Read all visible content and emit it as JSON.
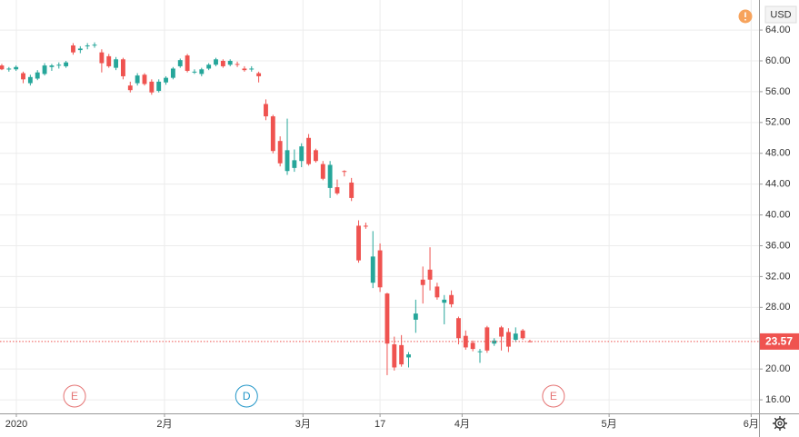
{
  "chart_data": {
    "type": "candlestick",
    "currency": "USD",
    "last_price": 23.57,
    "last_price_label": "23.57",
    "up_color": "#26a69a",
    "down_color": "#ef5350",
    "grid": true,
    "ylim": [
      14.24,
      67.9
    ],
    "yticks": [
      {
        "value": 16,
        "label": "16.00"
      },
      {
        "value": 20,
        "label": "20.00"
      },
      {
        "value": 24,
        "label": "24.00"
      },
      {
        "value": 28,
        "label": "28.00"
      },
      {
        "value": 32,
        "label": "32.00"
      },
      {
        "value": 36,
        "label": "36.00"
      },
      {
        "value": 40,
        "label": "40.00"
      },
      {
        "value": 44,
        "label": "44.00"
      },
      {
        "value": 48,
        "label": "48.00"
      },
      {
        "value": 52,
        "label": "52.00"
      },
      {
        "value": 56,
        "label": "56.00"
      },
      {
        "value": 60,
        "label": "60.00"
      },
      {
        "value": 64,
        "label": "64.00"
      }
    ],
    "xlim": [
      -0.25,
      106.1
    ],
    "xticks": [
      {
        "value": 2.04,
        "label": "2020"
      },
      {
        "value": 22.8,
        "label": "2月"
      },
      {
        "value": 42.2,
        "label": "3月"
      },
      {
        "value": 53,
        "label": "17"
      },
      {
        "value": 64.5,
        "label": "4月"
      },
      {
        "value": 85.1,
        "label": "5月"
      },
      {
        "value": 105,
        "label": "6月"
      }
    ],
    "events": [
      {
        "label": "E",
        "x": 10.2,
        "color": "#e57373"
      },
      {
        "label": "D",
        "x": 34.3,
        "color": "#2196c8"
      },
      {
        "label": "E",
        "x": 77.3,
        "color": "#e57373"
      }
    ],
    "open": [
      59.4,
      58.9,
      58.9,
      58.4,
      57.1,
      57.7,
      58.3,
      59.2,
      59.4,
      59.3,
      62.0,
      61.4,
      61.9,
      62.0,
      61.1,
      60.6,
      59.1,
      60.2,
      56.8,
      57.1,
      58.2,
      57.3,
      56.1,
      57.2,
      57.8,
      59.3,
      60.7,
      58.6,
      58.3,
      59.0,
      59.5,
      60.0,
      59.5,
      59.6,
      59.0,
      59.0,
      58.4,
      54.4,
      52.8,
      49.6,
      45.7,
      46.1,
      47.0,
      50.0,
      48.4,
      46.6,
      43.5,
      43.6,
      45.7,
      44.2,
      38.6,
      38.6,
      31.2,
      35.4,
      29.8,
      23.2,
      23.1,
      21.5,
      26.4,
      31.6,
      32.9,
      30.7,
      28.6,
      29.6,
      26.6,
      24.3,
      23.4,
      22.3,
      25.4,
      23.3,
      25.4,
      24.8,
      23.8,
      25.0,
      23.6
    ],
    "high": [
      59.6,
      59.2,
      59.4,
      58.6,
      58.2,
      58.8,
      59.7,
      59.6,
      59.8,
      60.0,
      62.3,
      61.9,
      62.3,
      62.4,
      61.5,
      60.9,
      60.5,
      60.4,
      57.3,
      58.4,
      58.4,
      57.6,
      57.6,
      58.0,
      59.2,
      60.3,
      60.9,
      58.9,
      59.1,
      59.7,
      60.4,
      60.2,
      60.2,
      59.9,
      59.3,
      59.3,
      58.6,
      55.0,
      53.0,
      50.2,
      52.5,
      48.5,
      49.3,
      50.5,
      48.6,
      47.0,
      47.0,
      44.6,
      45.8,
      44.8,
      39.3,
      39.0,
      37.9,
      36.3,
      29.9,
      24.2,
      24.4,
      22.2,
      29.0,
      33.3,
      35.8,
      31.2,
      29.6,
      30.2,
      26.8,
      25.0,
      23.7,
      22.6,
      25.6,
      24.0,
      25.6,
      25.3,
      25.4,
      25.2,
      23.8
    ],
    "low": [
      58.8,
      58.6,
      58.7,
      57.1,
      56.8,
      57.5,
      58.1,
      58.7,
      59.0,
      59.1,
      60.8,
      61.0,
      61.5,
      61.7,
      58.5,
      59.1,
      58.8,
      57.6,
      55.9,
      56.8,
      56.8,
      55.6,
      55.9,
      56.9,
      57.6,
      59.1,
      58.5,
      58.3,
      58.0,
      58.8,
      59.3,
      59.1,
      59.3,
      59.2,
      58.6,
      58.6,
      57.2,
      52.3,
      48.0,
      46.3,
      45.2,
      45.6,
      46.2,
      46.4,
      46.8,
      44.5,
      42.2,
      42.6,
      45.0,
      41.8,
      33.8,
      38.2,
      30.5,
      30.0,
      19.2,
      19.8,
      20.3,
      20.2,
      24.7,
      28.5,
      30.2,
      29.0,
      25.8,
      28.0,
      23.2,
      22.5,
      22.3,
      20.8,
      22.1,
      23.0,
      22.4,
      22.2,
      23.5,
      23.8,
      23.5
    ],
    "close": [
      58.9,
      59.0,
      59.2,
      57.6,
      57.9,
      58.5,
      59.4,
      59.4,
      59.5,
      59.8,
      61.1,
      61.6,
      62.0,
      62.1,
      59.7,
      59.3,
      60.2,
      58.0,
      56.2,
      58.1,
      57.0,
      55.9,
      57.3,
      57.8,
      59.0,
      60.1,
      58.7,
      58.6,
      58.9,
      59.5,
      60.2,
      59.3,
      60.0,
      59.5,
      58.8,
      59.0,
      58.0,
      52.8,
      48.3,
      46.7,
      48.4,
      47.1,
      48.9,
      46.6,
      47.0,
      44.7,
      46.5,
      42.8,
      45.6,
      42.2,
      34.1,
      38.5,
      34.6,
      30.6,
      23.3,
      20.2,
      20.6,
      21.9,
      27.2,
      30.9,
      31.6,
      29.3,
      29.0,
      28.4,
      24.0,
      22.8,
      22.6,
      22.3,
      22.4,
      23.7,
      24.2,
      22.9,
      24.6,
      24.0,
      23.57
    ]
  }
}
